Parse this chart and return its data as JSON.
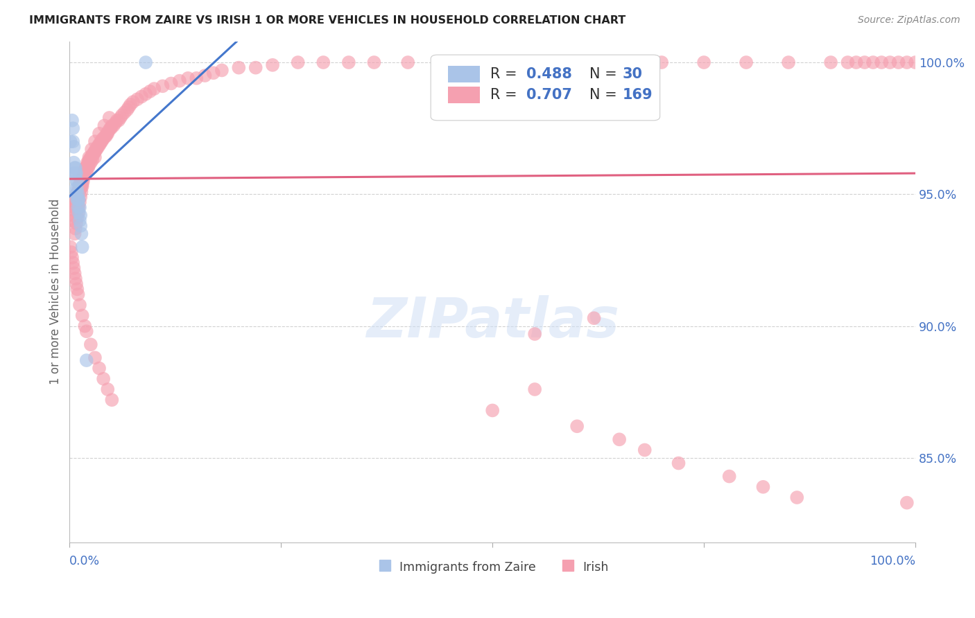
{
  "title": "IMMIGRANTS FROM ZAIRE VS IRISH 1 OR MORE VEHICLES IN HOUSEHOLD CORRELATION CHART",
  "source": "Source: ZipAtlas.com",
  "ylabel": "1 or more Vehicles in Household",
  "ytick_labels": [
    "100.0%",
    "95.0%",
    "90.0%",
    "85.0%"
  ],
  "ytick_values": [
    1.0,
    0.95,
    0.9,
    0.85
  ],
  "xlim": [
    0.0,
    1.0
  ],
  "ylim": [
    0.818,
    1.008
  ],
  "R_zaire": 0.488,
  "N_zaire": 30,
  "R_irish": 0.707,
  "N_irish": 169,
  "color_zaire": "#aac4e8",
  "color_irish": "#f5a0b0",
  "color_zaire_line": "#4477cc",
  "color_irish_line": "#e06080",
  "color_text_blue": "#4472c4",
  "watermark_color": "#d0dff5",
  "background_color": "#ffffff",
  "grid_color": "#cccccc",
  "zaire_x": [
    0.001,
    0.003,
    0.004,
    0.004,
    0.005,
    0.005,
    0.006,
    0.006,
    0.007,
    0.007,
    0.007,
    0.008,
    0.008,
    0.008,
    0.009,
    0.009,
    0.009,
    0.01,
    0.01,
    0.01,
    0.011,
    0.011,
    0.012,
    0.012,
    0.013,
    0.013,
    0.014,
    0.015,
    0.02,
    0.09
  ],
  "zaire_y": [
    0.97,
    0.978,
    0.975,
    0.97,
    0.968,
    0.962,
    0.96,
    0.958,
    0.96,
    0.958,
    0.952,
    0.958,
    0.955,
    0.95,
    0.955,
    0.952,
    0.948,
    0.95,
    0.948,
    0.945,
    0.948,
    0.943,
    0.945,
    0.94,
    0.942,
    0.938,
    0.935,
    0.93,
    0.887,
    1.0
  ],
  "irish_x": [
    0.003,
    0.004,
    0.005,
    0.006,
    0.007,
    0.007,
    0.008,
    0.008,
    0.009,
    0.009,
    0.01,
    0.01,
    0.011,
    0.011,
    0.012,
    0.012,
    0.013,
    0.013,
    0.013,
    0.014,
    0.014,
    0.015,
    0.015,
    0.016,
    0.016,
    0.017,
    0.017,
    0.018,
    0.018,
    0.019,
    0.02,
    0.02,
    0.021,
    0.021,
    0.022,
    0.022,
    0.023,
    0.023,
    0.024,
    0.025,
    0.025,
    0.026,
    0.027,
    0.027,
    0.028,
    0.029,
    0.03,
    0.03,
    0.031,
    0.032,
    0.033,
    0.034,
    0.035,
    0.036,
    0.037,
    0.038,
    0.039,
    0.04,
    0.042,
    0.043,
    0.044,
    0.045,
    0.046,
    0.048,
    0.049,
    0.05,
    0.052,
    0.054,
    0.056,
    0.058,
    0.06,
    0.062,
    0.065,
    0.068,
    0.07,
    0.072,
    0.075,
    0.08,
    0.085,
    0.09,
    0.095,
    0.1,
    0.11,
    0.12,
    0.13,
    0.14,
    0.15,
    0.16,
    0.17,
    0.18,
    0.2,
    0.22,
    0.24,
    0.27,
    0.3,
    0.33,
    0.36,
    0.4,
    0.44,
    0.48,
    0.52,
    0.56,
    0.6,
    0.65,
    0.7,
    0.75,
    0.8,
    0.85,
    0.9,
    0.92,
    0.93,
    0.94,
    0.95,
    0.96,
    0.97,
    0.98,
    0.99,
    1.0,
    0.55,
    0.62,
    0.001,
    0.002,
    0.003,
    0.004,
    0.005,
    0.006,
    0.007,
    0.008,
    0.009,
    0.01,
    0.012,
    0.015,
    0.018,
    0.02,
    0.025,
    0.03,
    0.035,
    0.04,
    0.045,
    0.05,
    0.006,
    0.007,
    0.008,
    0.009,
    0.01,
    0.011,
    0.012,
    0.013,
    0.014,
    0.015,
    0.016,
    0.017,
    0.019,
    0.021,
    0.023,
    0.026,
    0.03,
    0.035,
    0.041,
    0.047,
    0.5,
    0.6,
    0.65,
    0.68,
    0.72,
    0.78,
    0.82,
    0.86,
    0.55,
    0.99
  ],
  "irish_y": [
    0.94,
    0.942,
    0.944,
    0.945,
    0.947,
    0.946,
    0.948,
    0.946,
    0.95,
    0.948,
    0.951,
    0.95,
    0.952,
    0.951,
    0.954,
    0.952,
    0.954,
    0.953,
    0.952,
    0.955,
    0.953,
    0.956,
    0.954,
    0.957,
    0.956,
    0.958,
    0.957,
    0.959,
    0.958,
    0.96,
    0.96,
    0.958,
    0.961,
    0.96,
    0.962,
    0.96,
    0.963,
    0.961,
    0.963,
    0.964,
    0.962,
    0.964,
    0.965,
    0.963,
    0.965,
    0.966,
    0.966,
    0.964,
    0.967,
    0.967,
    0.968,
    0.968,
    0.969,
    0.969,
    0.97,
    0.97,
    0.971,
    0.971,
    0.972,
    0.972,
    0.973,
    0.973,
    0.974,
    0.975,
    0.975,
    0.976,
    0.976,
    0.977,
    0.978,
    0.978,
    0.979,
    0.98,
    0.981,
    0.982,
    0.983,
    0.984,
    0.985,
    0.986,
    0.987,
    0.988,
    0.989,
    0.99,
    0.991,
    0.992,
    0.993,
    0.994,
    0.994,
    0.995,
    0.996,
    0.997,
    0.998,
    0.998,
    0.999,
    1.0,
    1.0,
    1.0,
    1.0,
    1.0,
    1.0,
    1.0,
    1.0,
    1.0,
    1.0,
    1.0,
    1.0,
    1.0,
    1.0,
    1.0,
    1.0,
    1.0,
    1.0,
    1.0,
    1.0,
    1.0,
    1.0,
    1.0,
    1.0,
    1.0,
    0.897,
    0.903,
    0.93,
    0.928,
    0.926,
    0.924,
    0.922,
    0.92,
    0.918,
    0.916,
    0.914,
    0.912,
    0.908,
    0.904,
    0.9,
    0.898,
    0.893,
    0.888,
    0.884,
    0.88,
    0.876,
    0.872,
    0.935,
    0.937,
    0.939,
    0.941,
    0.943,
    0.945,
    0.947,
    0.949,
    0.951,
    0.953,
    0.955,
    0.957,
    0.96,
    0.962,
    0.964,
    0.967,
    0.97,
    0.973,
    0.976,
    0.979,
    0.868,
    0.862,
    0.857,
    0.853,
    0.848,
    0.843,
    0.839,
    0.835,
    0.876,
    0.833
  ]
}
